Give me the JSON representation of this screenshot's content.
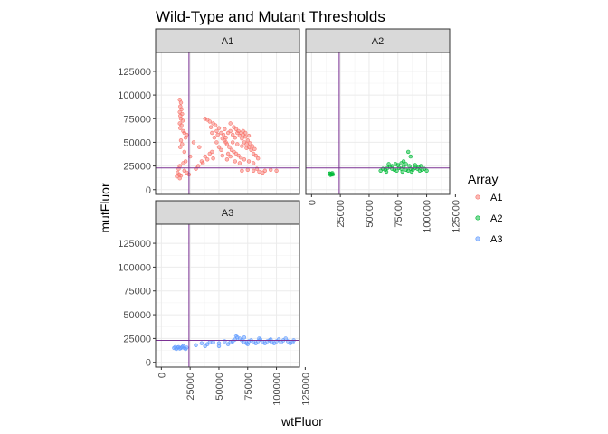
{
  "chart_data": {
    "type": "scatter",
    "title": "Wild-Type and Mutant Thresholds",
    "xlabel": "wtFluor",
    "ylabel": "mutFluor",
    "xlim": [
      -5000,
      120000
    ],
    "ylim": [
      -5000,
      145000
    ],
    "x_ticks": [
      0,
      25000,
      50000,
      75000,
      100000,
      125000
    ],
    "y_ticks": [
      0,
      25000,
      50000,
      75000,
      100000,
      125000
    ],
    "grid": true,
    "legend": {
      "title": "Array",
      "position": "right",
      "entries": [
        "A1",
        "A2",
        "A3"
      ]
    },
    "threshold_color": "#7b3294",
    "panels": [
      {
        "name": "A1",
        "color": "#F8766D",
        "threshold_x": 24000,
        "threshold_y": 23000,
        "points": [
          [
            16000,
            95000
          ],
          [
            17000,
            92000
          ],
          [
            16500,
            88000
          ],
          [
            17500,
            85000
          ],
          [
            16000,
            82000
          ],
          [
            18000,
            80000
          ],
          [
            16500,
            78000
          ],
          [
            17000,
            75000
          ],
          [
            18500,
            73000
          ],
          [
            16000,
            70000
          ],
          [
            17500,
            68000
          ],
          [
            16500,
            65000
          ],
          [
            19000,
            62000
          ],
          [
            20000,
            60000
          ],
          [
            22000,
            58000
          ],
          [
            21000,
            55000
          ],
          [
            17000,
            52000
          ],
          [
            18000,
            48000
          ],
          [
            16500,
            45000
          ],
          [
            20000,
            40000
          ],
          [
            25000,
            35000
          ],
          [
            21000,
            30000
          ],
          [
            19000,
            28000
          ],
          [
            16000,
            25000
          ],
          [
            15000,
            22000
          ],
          [
            14000,
            18000
          ],
          [
            15500,
            16000
          ],
          [
            13500,
            14000
          ],
          [
            16000,
            12000
          ],
          [
            17000,
            15000
          ],
          [
            20000,
            20000
          ],
          [
            22000,
            18000
          ],
          [
            24000,
            16000
          ],
          [
            30000,
            22000
          ],
          [
            32000,
            25000
          ],
          [
            35000,
            30000
          ],
          [
            38000,
            35000
          ],
          [
            40000,
            32000
          ],
          [
            42000,
            38000
          ],
          [
            44000,
            40000
          ],
          [
            45000,
            33000
          ],
          [
            36000,
            28000
          ],
          [
            28000,
            50000
          ],
          [
            33000,
            45000
          ],
          [
            38000,
            75000
          ],
          [
            42000,
            72000
          ],
          [
            45000,
            70000
          ],
          [
            47000,
            68000
          ],
          [
            50000,
            65000
          ],
          [
            48000,
            62000
          ],
          [
            52000,
            60000
          ],
          [
            55000,
            64000
          ],
          [
            54000,
            58000
          ],
          [
            56000,
            55000
          ],
          [
            58000,
            60000
          ],
          [
            60000,
            62000
          ],
          [
            62000,
            58000
          ],
          [
            64000,
            55000
          ],
          [
            66000,
            60000
          ],
          [
            68000,
            57000
          ],
          [
            70000,
            54000
          ],
          [
            72000,
            50000
          ],
          [
            74000,
            48000
          ],
          [
            76000,
            45000
          ],
          [
            78000,
            42000
          ],
          [
            80000,
            38000
          ],
          [
            82000,
            36000
          ],
          [
            84000,
            33000
          ],
          [
            60000,
            70000
          ],
          [
            63000,
            66000
          ],
          [
            65000,
            64000
          ],
          [
            67000,
            62000
          ],
          [
            69000,
            60000
          ],
          [
            71000,
            58000
          ],
          [
            73000,
            56000
          ],
          [
            55000,
            52000
          ],
          [
            57000,
            48000
          ],
          [
            59000,
            45000
          ],
          [
            61000,
            42000
          ],
          [
            63000,
            40000
          ],
          [
            65000,
            38000
          ],
          [
            67000,
            36000
          ],
          [
            69000,
            34000
          ],
          [
            50000,
            45000
          ],
          [
            52000,
            42000
          ],
          [
            48000,
            50000
          ],
          [
            46000,
            55000
          ],
          [
            44000,
            60000
          ],
          [
            62000,
            50000
          ],
          [
            66000,
            48000
          ],
          [
            70000,
            46000
          ],
          [
            74000,
            44000
          ],
          [
            58000,
            38000
          ],
          [
            64000,
            30000
          ],
          [
            68000,
            28000
          ],
          [
            72000,
            32000
          ],
          [
            76000,
            30000
          ],
          [
            80000,
            28000
          ],
          [
            70000,
            20000
          ],
          [
            75000,
            21000
          ],
          [
            80000,
            20000
          ],
          [
            85000,
            19000
          ],
          [
            90000,
            20000
          ],
          [
            95000,
            21000
          ],
          [
            100000,
            20000
          ],
          [
            83000,
            22000
          ],
          [
            88000,
            18000
          ],
          [
            60000,
            35000
          ],
          [
            57000,
            32000
          ],
          [
            53000,
            36000
          ],
          [
            40000,
            74000
          ],
          [
            43000,
            66000
          ],
          [
            49000,
            58000
          ],
          [
            53000,
            54000
          ],
          [
            56000,
            50000
          ],
          [
            75000,
            52000
          ],
          [
            77000,
            49000
          ],
          [
            79000,
            46000
          ],
          [
            81000,
            43000
          ],
          [
            71000,
            62000
          ],
          [
            73000,
            60000
          ],
          [
            76000,
            57000
          ]
        ]
      },
      {
        "name": "A2",
        "color": "#00BA38",
        "threshold_x": 24000,
        "threshold_y": 23000,
        "points": [
          [
            16000,
            17000
          ],
          [
            17000,
            16000
          ],
          [
            18000,
            17500
          ],
          [
            16500,
            15500
          ],
          [
            17500,
            16500
          ],
          [
            15500,
            17000
          ],
          [
            18500,
            16000
          ],
          [
            60000,
            20000
          ],
          [
            62000,
            22000
          ],
          [
            64000,
            21000
          ],
          [
            66000,
            23000
          ],
          [
            68000,
            24000
          ],
          [
            70000,
            22000
          ],
          [
            72000,
            21000
          ],
          [
            74000,
            20000
          ],
          [
            76000,
            23000
          ],
          [
            78000,
            22000
          ],
          [
            80000,
            24000
          ],
          [
            82000,
            21000
          ],
          [
            84000,
            20000
          ],
          [
            86000,
            22000
          ],
          [
            88000,
            21000
          ],
          [
            90000,
            23000
          ],
          [
            92000,
            22000
          ],
          [
            94000,
            20000
          ],
          [
            96000,
            21000
          ],
          [
            98000,
            22000
          ],
          [
            100000,
            20000
          ],
          [
            75000,
            26000
          ],
          [
            78000,
            28000
          ],
          [
            80000,
            30000
          ],
          [
            82000,
            27000
          ],
          [
            85000,
            25000
          ],
          [
            70000,
            25000
          ],
          [
            73000,
            27000
          ],
          [
            84000,
            40000
          ],
          [
            86000,
            35000
          ],
          [
            67000,
            27000
          ],
          [
            90000,
            26000
          ],
          [
            93000,
            24000
          ],
          [
            79000,
            19000
          ],
          [
            87000,
            19000
          ],
          [
            95000,
            25000
          ],
          [
            65000,
            19000
          ]
        ]
      },
      {
        "name": "A3",
        "color": "#619CFF",
        "threshold_x": 24000,
        "threshold_y": 23000,
        "points": [
          [
            11000,
            15000
          ],
          [
            12000,
            16000
          ],
          [
            13000,
            14000
          ],
          [
            14000,
            15500
          ],
          [
            15000,
            16000
          ],
          [
            16000,
            14500
          ],
          [
            17000,
            15000
          ],
          [
            18000,
            16000
          ],
          [
            19000,
            17000
          ],
          [
            20000,
            15000
          ],
          [
            21000,
            14000
          ],
          [
            22000,
            15500
          ],
          [
            30000,
            18000
          ],
          [
            35000,
            20000
          ],
          [
            40000,
            19000
          ],
          [
            45000,
            21000
          ],
          [
            50000,
            20000
          ],
          [
            55000,
            22000
          ],
          [
            58000,
            19000
          ],
          [
            60000,
            21000
          ],
          [
            62000,
            22000
          ],
          [
            64000,
            24000
          ],
          [
            66000,
            26000
          ],
          [
            68000,
            25000
          ],
          [
            70000,
            23000
          ],
          [
            72000,
            21000
          ],
          [
            74000,
            20000
          ],
          [
            76000,
            22000
          ],
          [
            78000,
            23000
          ],
          [
            80000,
            21000
          ],
          [
            82000,
            20000
          ],
          [
            84000,
            22000
          ],
          [
            86000,
            24000
          ],
          [
            88000,
            21000
          ],
          [
            90000,
            20000
          ],
          [
            92000,
            22000
          ],
          [
            94000,
            23000
          ],
          [
            96000,
            21000
          ],
          [
            98000,
            20000
          ],
          [
            100000,
            22000
          ],
          [
            102000,
            24000
          ],
          [
            104000,
            21000
          ],
          [
            106000,
            23000
          ],
          [
            108000,
            25000
          ],
          [
            110000,
            22000
          ],
          [
            112000,
            20000
          ],
          [
            114000,
            21000
          ],
          [
            115000,
            23000
          ],
          [
            65000,
            28000
          ],
          [
            72000,
            26000
          ],
          [
            85000,
            25000
          ],
          [
            95000,
            24000
          ],
          [
            75000,
            19000
          ],
          [
            50000,
            17000
          ],
          [
            42000,
            21000
          ],
          [
            38000,
            17000
          ]
        ]
      }
    ]
  }
}
